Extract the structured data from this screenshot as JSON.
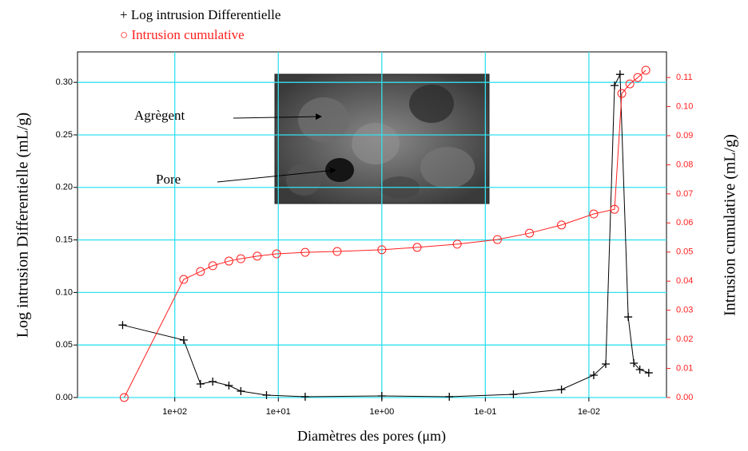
{
  "chart_data": {
    "type": "line",
    "log_x": true,
    "legend": {
      "diff": "+ Log intrusion Differentielle",
      "cum": "○ Intrusion cumulative"
    },
    "xlabel": "Diamètres des pores (μm)",
    "ylabel": "Log intrusion Differentielle (mL/g)",
    "y2label": "Intrusion cumulative (mL/g)",
    "annotations": [
      "Agrègent",
      "Pore"
    ],
    "xlim": [
      870,
      0.00178
    ],
    "xticks": [
      {
        "value": 100,
        "label": "1e+02"
      },
      {
        "value": 10,
        "label": "1e+01"
      },
      {
        "value": 1,
        "label": "1e+00"
      },
      {
        "value": 0.1,
        "label": "1e-01"
      },
      {
        "value": 0.01,
        "label": "1e-02"
      }
    ],
    "ylim": [
      0,
      0.329
    ],
    "yticks": [
      {
        "value": 0,
        "label": "0.00"
      },
      {
        "value": 0.05,
        "label": "0.05"
      },
      {
        "value": 0.1,
        "label": "0.10"
      },
      {
        "value": 0.15,
        "label": "0.15"
      },
      {
        "value": 0.2,
        "label": "0.20"
      },
      {
        "value": 0.25,
        "label": "0.25"
      },
      {
        "value": 0.3,
        "label": "0.30"
      }
    ],
    "y2lim": [
      0,
      0.1188
    ],
    "y2ticks": [
      {
        "value": 0,
        "label": "0.00"
      },
      {
        "value": 0.01,
        "label": "0.01"
      },
      {
        "value": 0.02,
        "label": "0.02"
      },
      {
        "value": 0.03,
        "label": "0.03"
      },
      {
        "value": 0.04,
        "label": "0.04"
      },
      {
        "value": 0.05,
        "label": "0.05"
      },
      {
        "value": 0.06,
        "label": "0.06"
      },
      {
        "value": 0.07,
        "label": "0.07"
      },
      {
        "value": 0.08,
        "label": "0.08"
      },
      {
        "value": 0.09,
        "label": "0.09"
      },
      {
        "value": 0.1,
        "label": "0.10"
      },
      {
        "value": 0.11,
        "label": "0.11"
      }
    ],
    "grid": true,
    "grid_color": "#33e0f0",
    "series": [
      {
        "name": "Log intrusion Differentielle",
        "color": "#000000",
        "marker": "plus",
        "axis": "y",
        "x": [
          319,
          82,
          56.5,
          43,
          30,
          23,
          13,
          5.5,
          1,
          0.223,
          0.0536,
          0.0184,
          0.00898,
          0.00687,
          0.00565,
          0.005,
          0.00417,
          0.00368,
          0.00322,
          0.00264
        ],
        "values": [
          0.069,
          0.0547,
          0.0129,
          0.0152,
          0.0114,
          0.0061,
          0.0023,
          0.0008,
          0.0015,
          0.0008,
          0.003,
          0.0076,
          0.0213,
          0.0319,
          0.297,
          0.3076,
          0.0767,
          0.0327,
          0.0266,
          0.0235
        ]
      },
      {
        "name": "Intrusion cumulative",
        "color": "#ff2020",
        "marker": "circle",
        "axis": "y2",
        "x": [
          308,
          82,
          56.5,
          43,
          30,
          23,
          16,
          10.4,
          5.5,
          2.7,
          1,
          0.456,
          0.187,
          0.0765,
          0.0375,
          0.0184,
          0.00898,
          0.00565,
          0.00481,
          0.00402,
          0.00337,
          0.00282
        ],
        "values": [
          0,
          0.0406,
          0.0433,
          0.0453,
          0.0469,
          0.0477,
          0.0486,
          0.0494,
          0.0499,
          0.0502,
          0.0508,
          0.0516,
          0.0527,
          0.0543,
          0.0565,
          0.0593,
          0.0631,
          0.0647,
          0.1045,
          0.1078,
          0.11,
          0.1125
        ]
      }
    ]
  }
}
